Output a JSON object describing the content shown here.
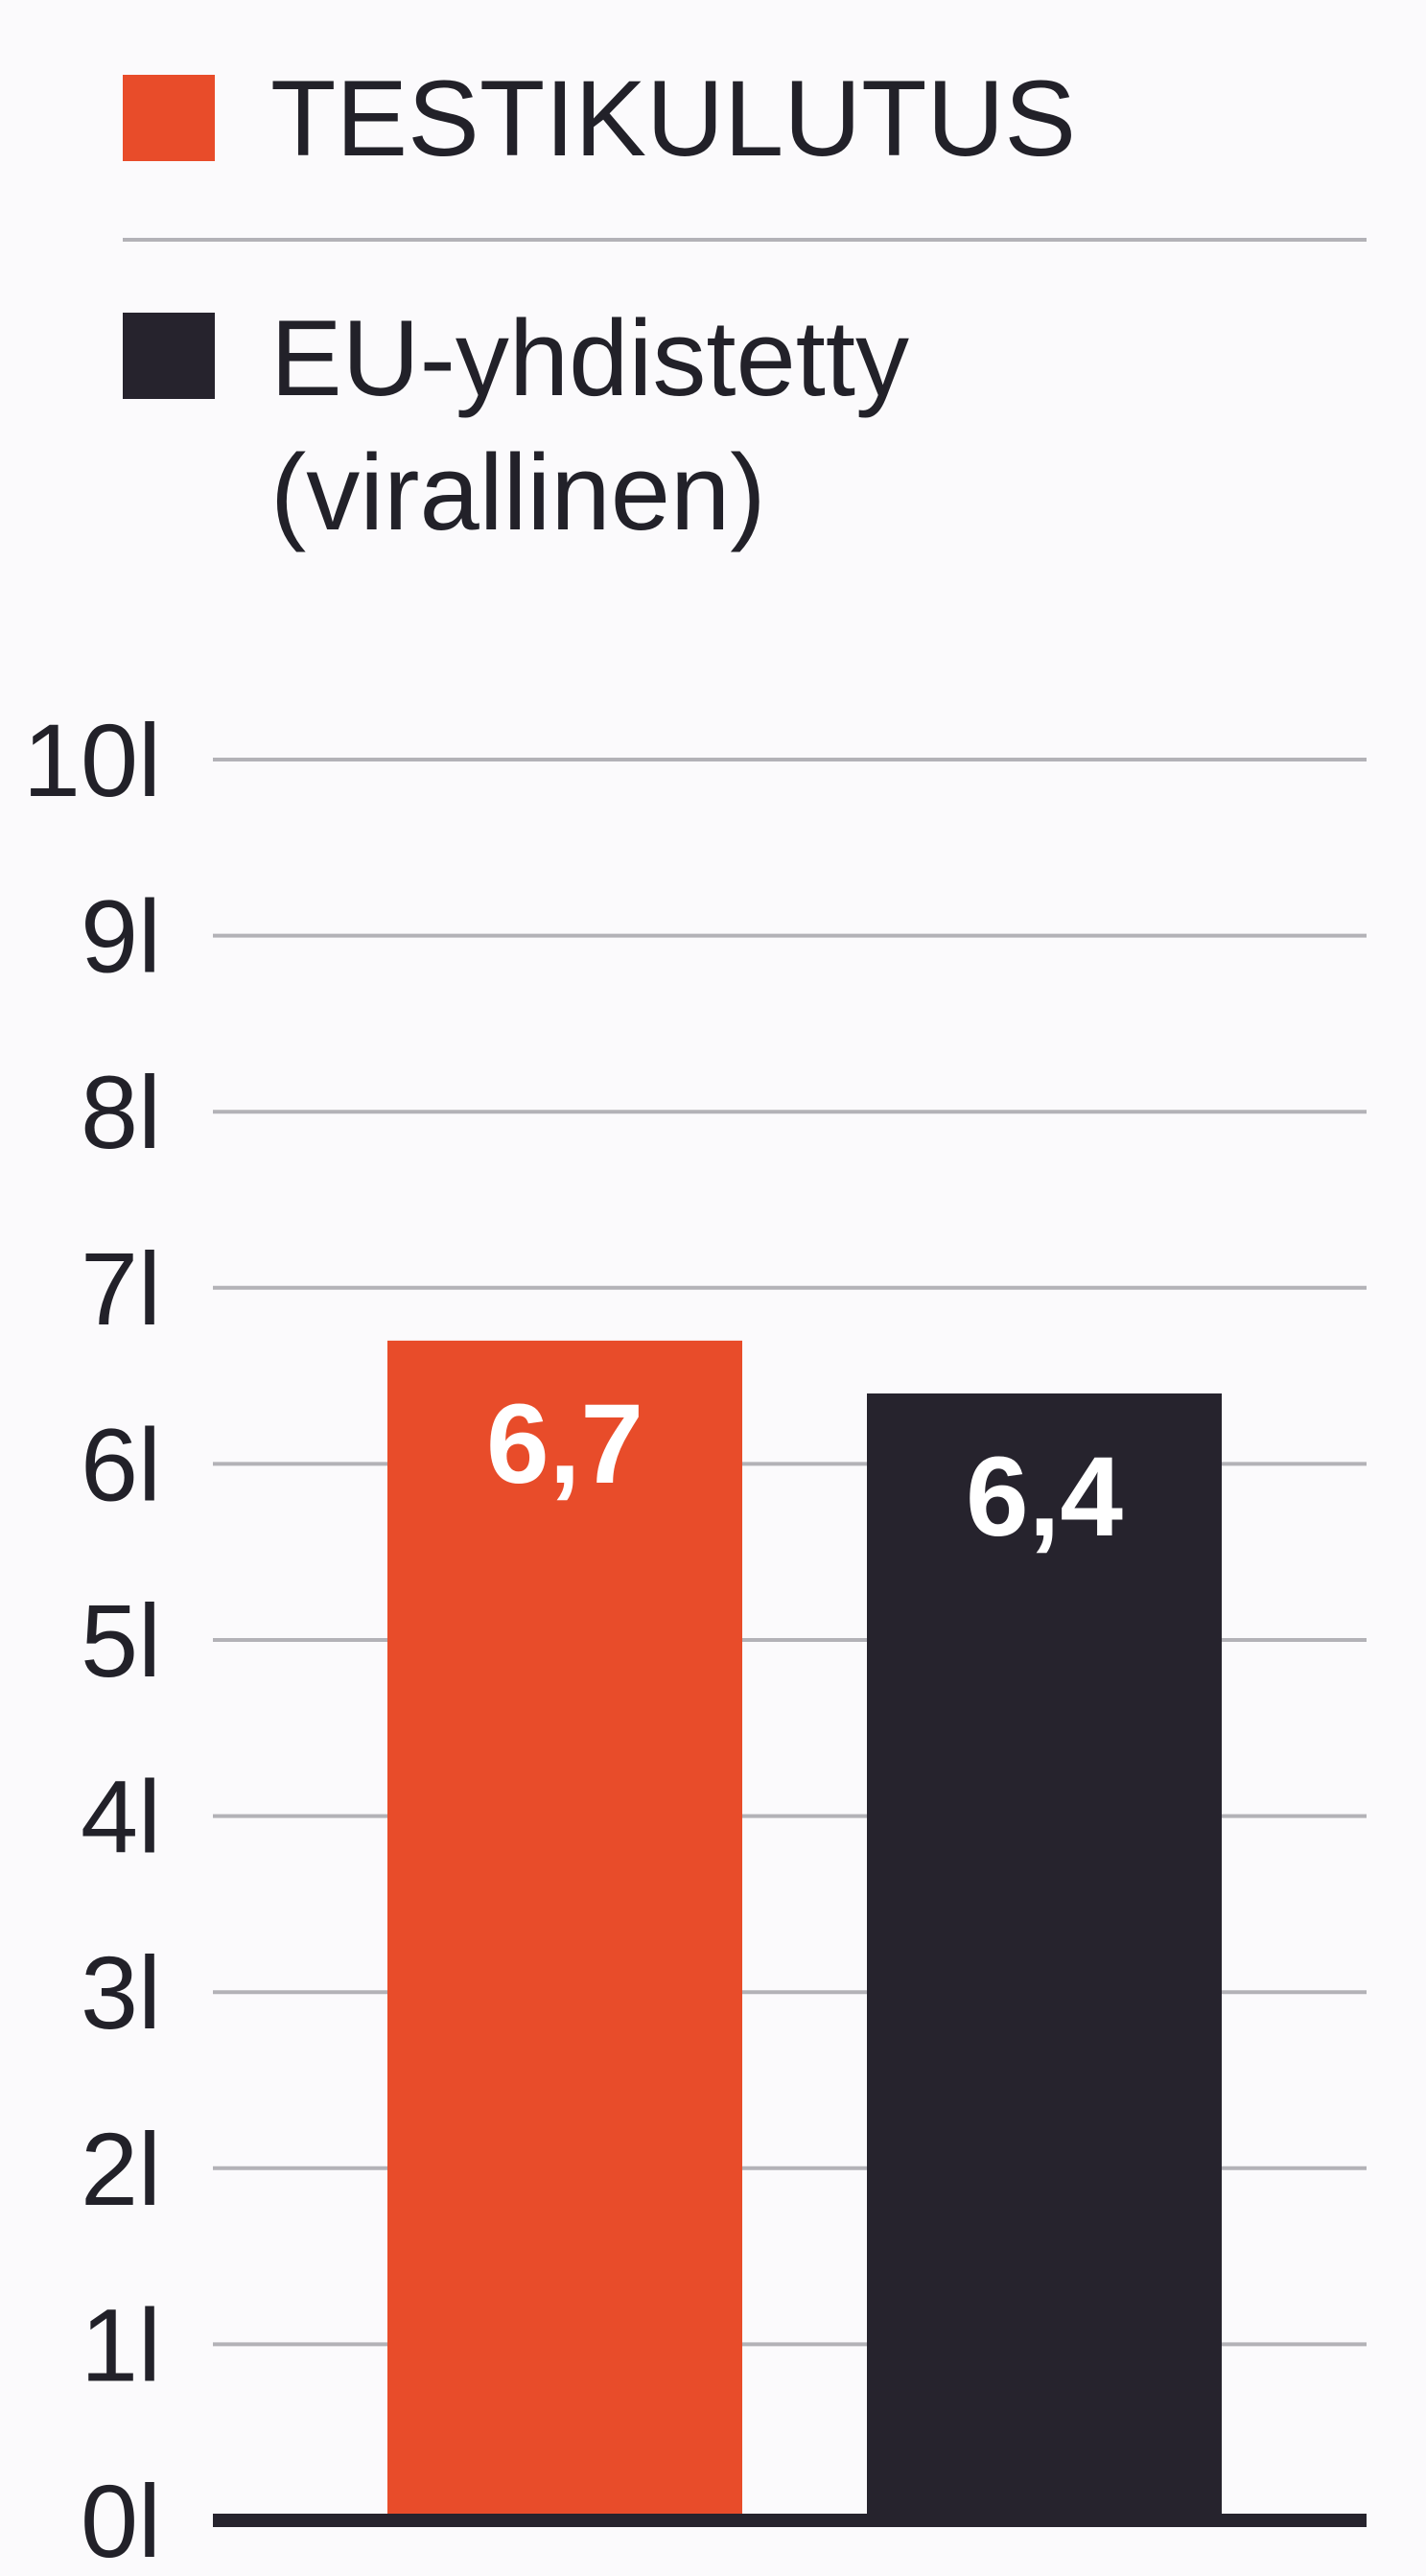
{
  "chart_data": {
    "type": "bar",
    "title": "",
    "xlabel": "",
    "ylabel": "",
    "ylim": [
      0,
      10
    ],
    "yticks": [
      0,
      1,
      2,
      3,
      4,
      5,
      6,
      7,
      8,
      9,
      10
    ],
    "ytick_suffix": "l",
    "grid": true,
    "legend_position": "top",
    "series": [
      {
        "name": "TESTIKULUTUS",
        "color": "#e84c2a",
        "value": 6.7,
        "value_label": "6,7"
      },
      {
        "name": "EU-yhdistetty (virallinen)",
        "name_lines": [
          "EU-yhdistetty",
          "(virallinen)"
        ],
        "color": "#26232d",
        "value": 6.4,
        "value_label": "6,4"
      }
    ]
  }
}
